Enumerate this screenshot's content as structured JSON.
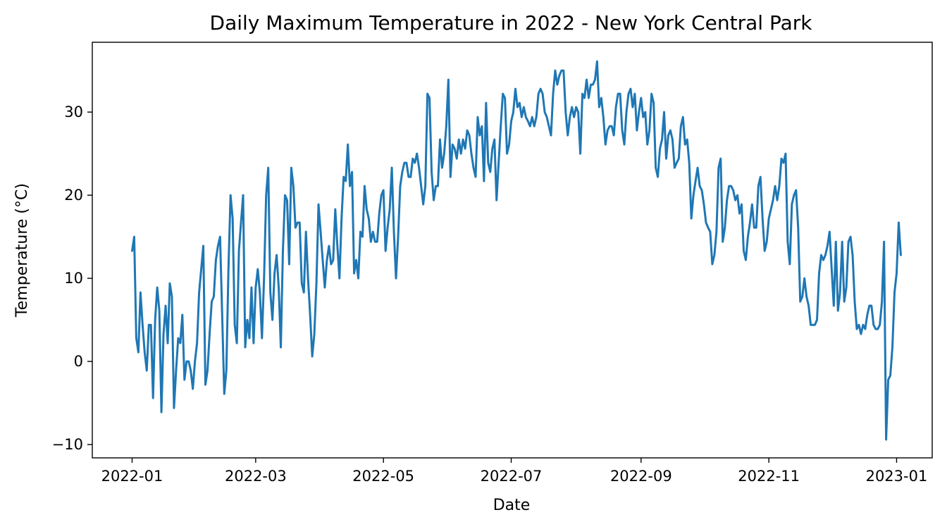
{
  "chart_data": {
    "type": "line",
    "title": "Daily Maximum Temperature in 2022 - New York Central Park",
    "xlabel": "Date",
    "ylabel": "Temperature (°C)",
    "grid": false,
    "legend": "none",
    "xlim": [
      "2021-12-13",
      "2023-01-18"
    ],
    "ylim": [
      -11.6,
      38.4
    ],
    "xticks": [
      {
        "value": "2022-01-01",
        "label": "2022-01"
      },
      {
        "value": "2022-03-01",
        "label": "2022-03"
      },
      {
        "value": "2022-05-01",
        "label": "2022-05"
      },
      {
        "value": "2022-07-01",
        "label": "2022-07"
      },
      {
        "value": "2022-09-01",
        "label": "2022-09"
      },
      {
        "value": "2022-11-01",
        "label": "2022-11"
      },
      {
        "value": "2023-01-01",
        "label": "2023-01"
      }
    ],
    "yticks": [
      {
        "value": -10,
        "label": "−10"
      },
      {
        "value": 0,
        "label": "0"
      },
      {
        "value": 10,
        "label": "10"
      },
      {
        "value": 20,
        "label": "20"
      },
      {
        "value": 30,
        "label": "30"
      }
    ],
    "colors": {
      "series": "#1f77b4"
    },
    "series": [
      {
        "start_date": "2022-01-01",
        "interval": "1 day",
        "values": [
          13.3,
          15.0,
          2.8,
          1.1,
          8.3,
          4.4,
          1.1,
          -1.1,
          4.4,
          4.4,
          -4.4,
          5.0,
          8.9,
          6.1,
          -6.1,
          3.3,
          6.7,
          2.2,
          9.4,
          7.8,
          -5.6,
          -1.1,
          2.8,
          2.2,
          5.6,
          -2.2,
          0.0,
          0.0,
          -1.1,
          -3.3,
          0.0,
          2.2,
          8.3,
          11.1,
          13.9,
          -2.8,
          -1.1,
          3.3,
          7.2,
          7.8,
          12.2,
          13.9,
          15.0,
          5.6,
          -3.9,
          -1.1,
          11.1,
          20.0,
          17.2,
          4.4,
          2.2,
          13.3,
          16.7,
          20.0,
          1.7,
          5.0,
          2.8,
          8.9,
          2.2,
          8.9,
          11.1,
          8.3,
          2.8,
          10.0,
          20.0,
          23.3,
          8.3,
          5.0,
          10.6,
          12.8,
          8.9,
          1.7,
          13.3,
          20.0,
          19.4,
          11.7,
          23.3,
          21.1,
          16.1,
          16.7,
          16.7,
          9.4,
          8.3,
          15.6,
          10.0,
          5.6,
          0.6,
          3.3,
          9.4,
          18.9,
          15.6,
          12.2,
          8.9,
          12.2,
          13.9,
          11.7,
          12.2,
          18.3,
          13.9,
          10.0,
          17.2,
          22.2,
          21.7,
          26.1,
          21.1,
          22.8,
          10.6,
          12.2,
          10.0,
          15.6,
          15.0,
          21.1,
          18.3,
          17.2,
          14.4,
          15.6,
          14.4,
          14.4,
          17.8,
          20.0,
          20.6,
          13.3,
          16.1,
          18.3,
          23.3,
          15.6,
          10.0,
          15.0,
          21.1,
          22.8,
          23.9,
          23.9,
          22.2,
          22.2,
          24.4,
          23.9,
          25.0,
          23.3,
          21.1,
          18.9,
          21.1,
          32.2,
          31.7,
          22.8,
          19.4,
          21.1,
          21.1,
          26.7,
          23.3,
          25.0,
          28.3,
          33.9,
          22.2,
          26.1,
          25.6,
          24.4,
          26.7,
          25.0,
          26.7,
          25.6,
          27.8,
          27.2,
          25.0,
          23.3,
          22.2,
          29.4,
          27.2,
          28.3,
          21.7,
          31.1,
          23.9,
          22.8,
          25.6,
          26.7,
          19.4,
          23.9,
          28.3,
          32.2,
          31.7,
          25.0,
          26.1,
          28.9,
          30.0,
          32.8,
          30.6,
          31.1,
          29.4,
          30.6,
          29.4,
          28.9,
          28.3,
          29.4,
          28.3,
          29.4,
          32.2,
          32.8,
          32.2,
          30.0,
          29.4,
          28.3,
          27.2,
          32.2,
          35.0,
          33.3,
          34.4,
          35.0,
          35.0,
          30.0,
          27.2,
          29.4,
          30.6,
          29.4,
          30.6,
          30.0,
          25.0,
          32.2,
          31.7,
          33.9,
          31.7,
          33.3,
          33.3,
          33.9,
          36.1,
          30.6,
          31.7,
          29.4,
          26.1,
          27.8,
          28.3,
          28.3,
          27.2,
          30.6,
          32.2,
          32.2,
          27.8,
          26.1,
          30.0,
          32.2,
          32.8,
          30.6,
          32.2,
          27.8,
          30.0,
          31.7,
          29.4,
          30.0,
          26.1,
          27.8,
          32.2,
          31.1,
          23.3,
          22.2,
          25.6,
          26.7,
          30.0,
          24.4,
          27.2,
          27.8,
          26.7,
          23.3,
          23.9,
          24.4,
          28.3,
          29.4,
          26.1,
          26.7,
          23.9,
          17.2,
          20.0,
          21.7,
          23.3,
          21.1,
          20.6,
          18.9,
          16.7,
          16.1,
          15.6,
          11.7,
          12.8,
          15.6,
          23.3,
          24.4,
          14.4,
          16.1,
          19.4,
          21.1,
          21.1,
          20.6,
          19.4,
          20.0,
          17.8,
          18.9,
          13.3,
          12.2,
          15.0,
          16.7,
          18.9,
          16.1,
          16.1,
          21.1,
          22.2,
          17.2,
          13.3,
          14.4,
          17.2,
          18.3,
          19.4,
          21.1,
          19.4,
          21.1,
          24.4,
          23.9,
          25.0,
          14.4,
          11.7,
          18.9,
          20.0,
          20.6,
          16.1,
          7.2,
          7.8,
          10.0,
          7.8,
          6.7,
          4.4,
          4.4,
          4.4,
          5.0,
          10.6,
          12.8,
          12.2,
          12.8,
          13.9,
          15.6,
          11.1,
          6.7,
          14.4,
          6.1,
          8.3,
          14.4,
          7.2,
          8.9,
          14.4,
          15.0,
          12.8,
          7.2,
          3.9,
          4.4,
          3.3,
          4.4,
          3.9,
          5.6,
          6.7,
          6.7,
          4.4,
          3.9,
          3.9,
          4.4,
          7.2,
          14.4,
          -9.4,
          -2.2,
          -1.7,
          1.7,
          8.3,
          10.6,
          16.7,
          12.8
        ]
      }
    ]
  }
}
